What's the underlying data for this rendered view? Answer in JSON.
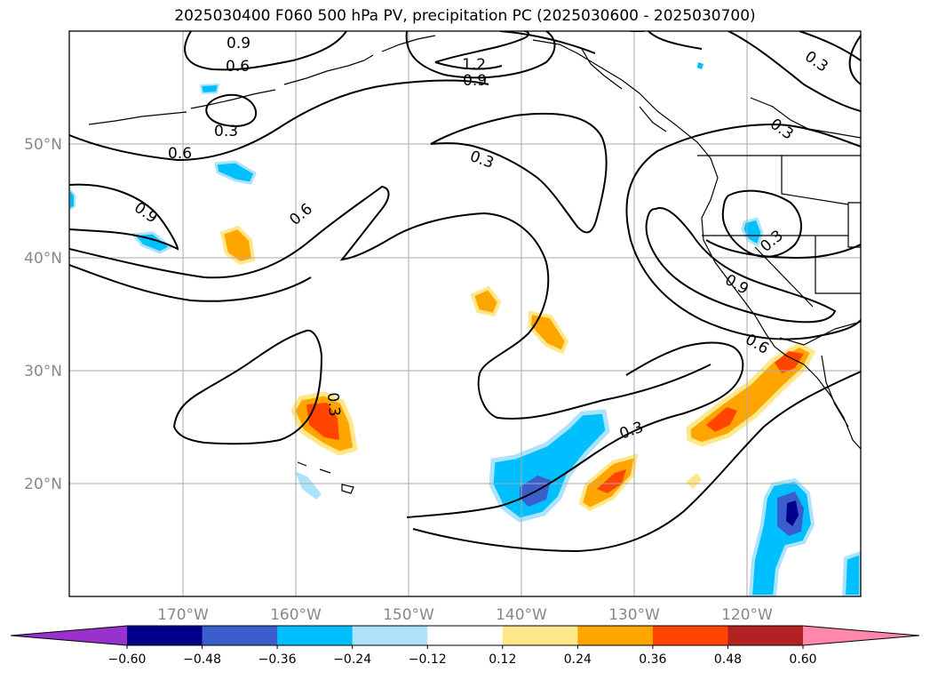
{
  "title": "2025030400 F060 500 hPa PV, precipitation PC (2025030600 - 2025030700)",
  "axes": {
    "lon_ticks": [
      "170°W",
      "160°W",
      "150°W",
      "140°W",
      "130°W",
      "120°W"
    ],
    "lat_ticks": [
      "50°N",
      "40°N",
      "30°N",
      "20°N"
    ]
  },
  "contour_labels": [
    "0.9",
    "0.6",
    "0.3",
    "1.2",
    "0.9",
    "0.3",
    "0.6",
    "0.3",
    "0.9",
    "0.6",
    "0.3",
    "0.9",
    "0.6",
    "0.3",
    "0.3"
  ],
  "colorbar": {
    "ticks": [
      "−0.60",
      "−0.48",
      "−0.36",
      "−0.24",
      "−0.12",
      "0.12",
      "0.24",
      "0.36",
      "0.48",
      "0.60"
    ],
    "colors": [
      "#9932CC",
      "#00008B",
      "#3A5FCD",
      "#00BFFF",
      "#ADE3FA",
      "#FFFFFF",
      "#FFE88C",
      "#FFA500",
      "#FF4500",
      "#B22222",
      "#FF88AA"
    ]
  }
}
